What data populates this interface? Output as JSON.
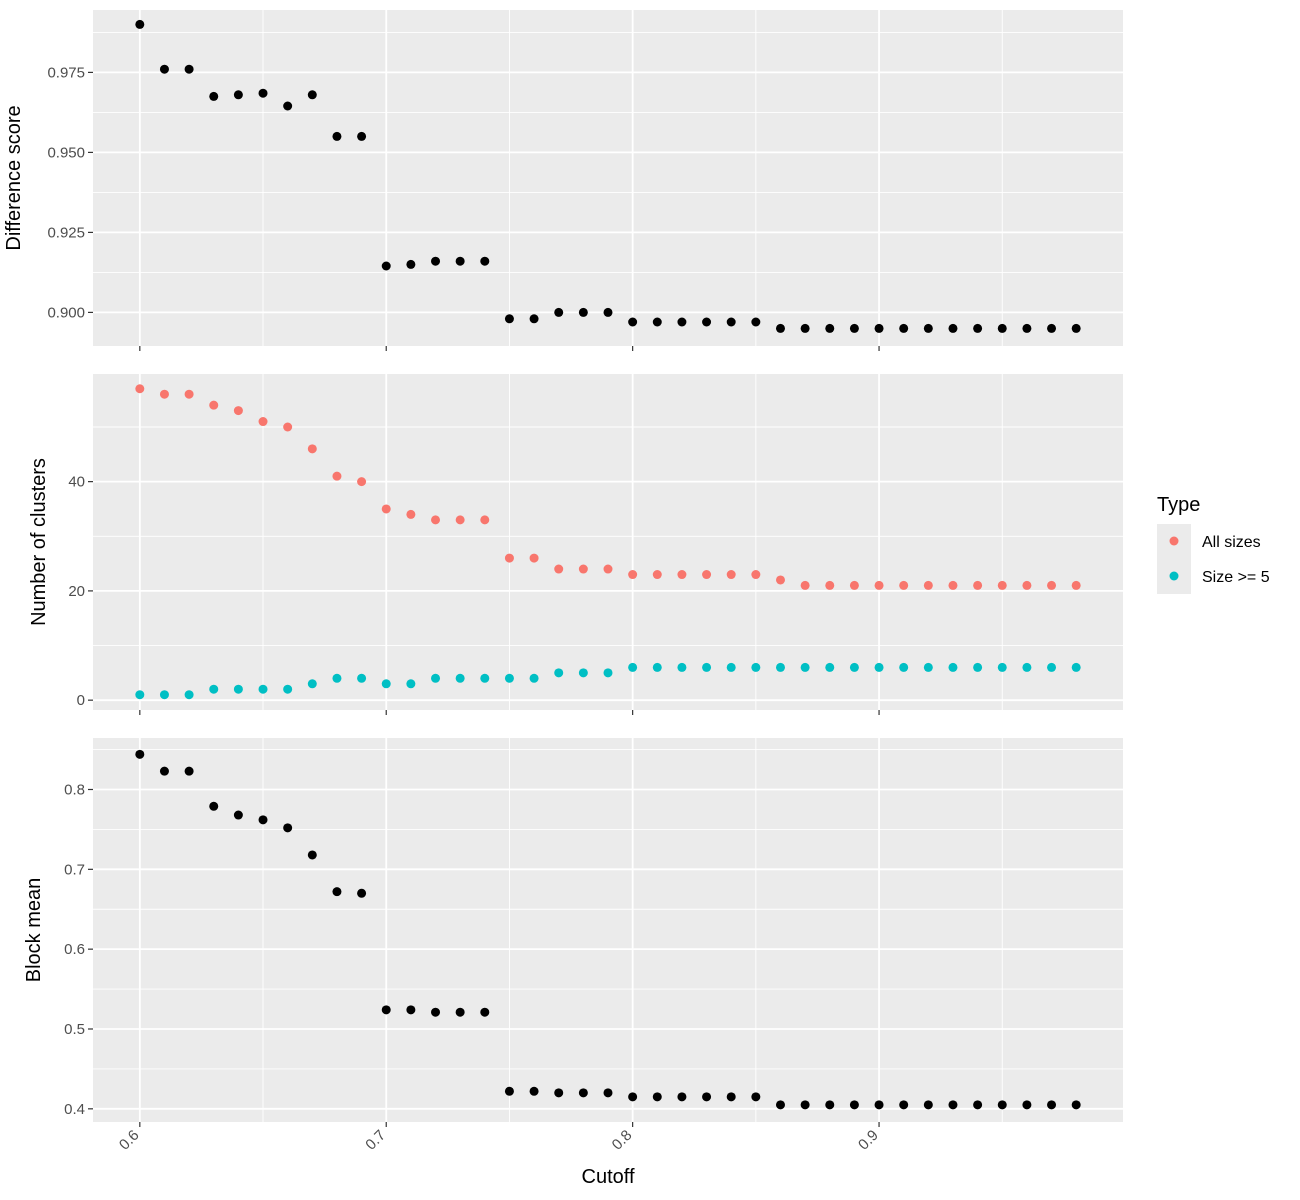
{
  "chart_data": {
    "type": "scatter",
    "x": [
      0.6,
      0.61,
      0.62,
      0.63,
      0.64,
      0.65,
      0.66,
      0.67,
      0.68,
      0.69,
      0.7,
      0.71,
      0.72,
      0.73,
      0.74,
      0.75,
      0.76,
      0.77,
      0.78,
      0.79,
      0.8,
      0.81,
      0.82,
      0.83,
      0.84,
      0.85,
      0.86,
      0.87,
      0.88,
      0.89,
      0.9,
      0.91,
      0.92,
      0.93,
      0.94,
      0.95,
      0.96,
      0.97,
      0.98
    ],
    "xlabel": "Cutoff",
    "x_ticks": [
      "0.6",
      "0.7",
      "0.8",
      "0.9"
    ],
    "x_tick_values": [
      0.6,
      0.7,
      0.8,
      0.9
    ],
    "xlim": [
      0.581,
      0.999
    ],
    "panels": [
      {
        "ylabel": "Difference score",
        "ylim": [
          0.8895,
          0.9945
        ],
        "y_ticks": [
          "0.900",
          "0.925",
          "0.950",
          "0.975"
        ],
        "y_tick_values": [
          0.9,
          0.925,
          0.95,
          0.975
        ],
        "series": [
          {
            "color": "#000000",
            "values": [
              0.99,
              0.976,
              0.976,
              0.9675,
              0.968,
              0.9685,
              0.9645,
              0.968,
              0.955,
              0.955,
              0.9145,
              0.915,
              0.916,
              0.916,
              0.916,
              0.898,
              0.898,
              0.9,
              0.9,
              0.9,
              0.897,
              0.897,
              0.897,
              0.897,
              0.897,
              0.897,
              0.895,
              0.895,
              0.895,
              0.895,
              0.895,
              0.895,
              0.895,
              0.895,
              0.895,
              0.895,
              0.895,
              0.895,
              0.895
            ]
          }
        ]
      },
      {
        "ylabel": "Number of clusters",
        "ylim": [
          -1.8,
          59.7
        ],
        "y_ticks": [
          "0",
          "20",
          "40"
        ],
        "y_tick_values": [
          0,
          20,
          40
        ],
        "series": [
          {
            "name": "All sizes",
            "color": "#F8766D",
            "values": [
              57,
              56,
              56,
              54,
              53,
              51,
              50,
              46,
              41,
              40,
              35,
              34,
              33,
              33,
              33,
              26,
              26,
              24,
              24,
              24,
              23,
              23,
              23,
              23,
              23,
              23,
              22,
              21,
              21,
              21,
              21,
              21,
              21,
              21,
              21,
              21,
              21,
              21,
              21
            ]
          },
          {
            "name": "Size >= 5",
            "color": "#00BFC4",
            "values": [
              1,
              1,
              1,
              2,
              2,
              2,
              2,
              3,
              4,
              4,
              3,
              3,
              4,
              4,
              4,
              4,
              4,
              5,
              5,
              5,
              6,
              6,
              6,
              6,
              6,
              6,
              6,
              6,
              6,
              6,
              6,
              6,
              6,
              6,
              6,
              6,
              6,
              6,
              6
            ]
          }
        ]
      },
      {
        "ylabel": "Block mean",
        "ylim": [
          0.3835,
          0.8645
        ],
        "y_ticks": [
          "0.4",
          "0.5",
          "0.6",
          "0.7",
          "0.8"
        ],
        "y_tick_values": [
          0.4,
          0.5,
          0.6,
          0.7,
          0.8
        ],
        "series": [
          {
            "color": "#000000",
            "values": [
              0.844,
              0.823,
              0.823,
              0.779,
              0.768,
              0.762,
              0.752,
              0.718,
              0.672,
              0.67,
              0.524,
              0.524,
              0.521,
              0.521,
              0.521,
              0.422,
              0.422,
              0.42,
              0.42,
              0.42,
              0.415,
              0.415,
              0.415,
              0.415,
              0.415,
              0.415,
              0.405,
              0.405,
              0.405,
              0.405,
              0.405,
              0.405,
              0.405,
              0.405,
              0.405,
              0.405,
              0.405,
              0.405,
              0.405
            ]
          }
        ]
      }
    ],
    "legend": {
      "title": "Type",
      "placement": "right",
      "entries": [
        {
          "label": "All sizes",
          "color": "#F8766D"
        },
        {
          "label": "Size >= 5",
          "color": "#00BFC4"
        }
      ]
    },
    "grid": true,
    "panel_background": "#EBEBEB",
    "grid_color": "#FFFFFF"
  }
}
